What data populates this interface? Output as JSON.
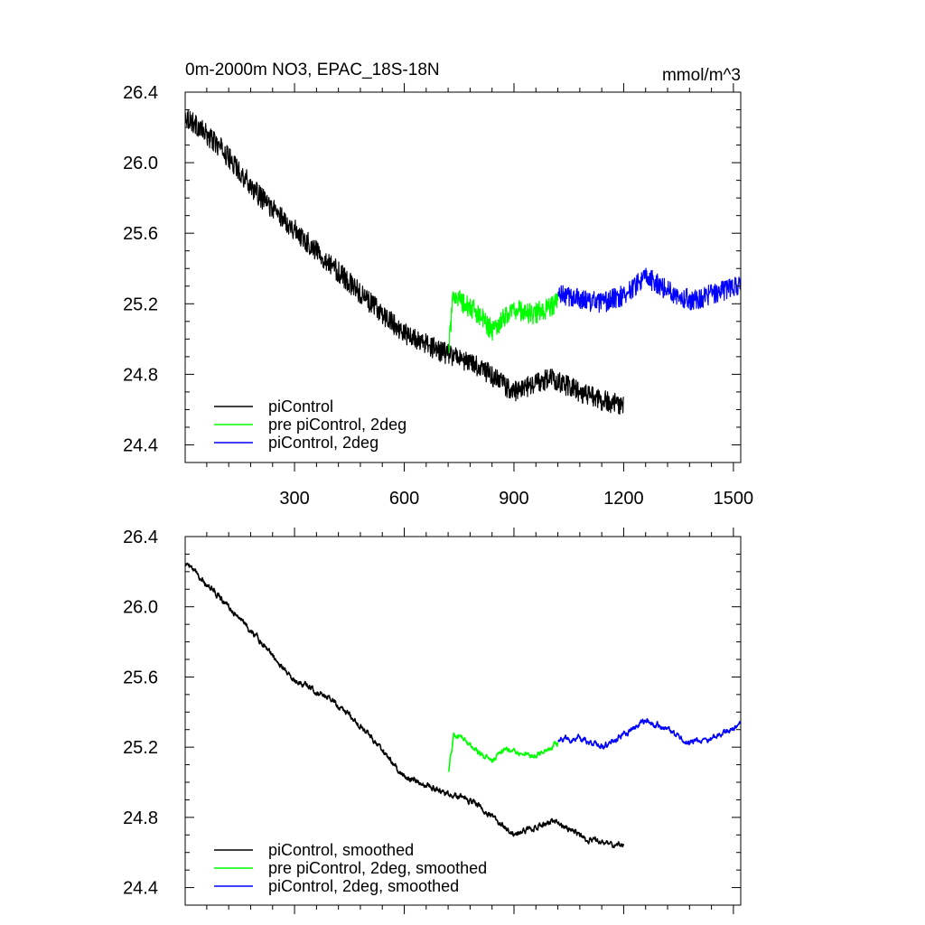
{
  "chart_data": [
    {
      "type": "line",
      "title": "0m-2000m NO3, EPAC_18S-18N",
      "units": "mmol/m^3",
      "xlabel": "",
      "ylabel": "",
      "xlim": [
        1,
        1520
      ],
      "ylim": [
        24.3,
        26.4
      ],
      "x_ticks": [
        300,
        600,
        900,
        1200,
        1500
      ],
      "x_tick_labels": [
        "300",
        "600",
        "900",
        "1200",
        "1500"
      ],
      "y_ticks": [
        24.4,
        24.8,
        25.2,
        25.6,
        26.0,
        26.4
      ],
      "y_tick_labels": [
        "24.4",
        "24.8",
        "25.2",
        "25.6",
        "26.0",
        "26.4"
      ],
      "grid": false,
      "legend_position": "bottom-left",
      "series": [
        {
          "name": "piControl",
          "color": "#000000",
          "noise": 0.06,
          "points": [
            [
              1,
              26.27
            ],
            [
              100,
              26.08
            ],
            [
              200,
              25.82
            ],
            [
              300,
              25.62
            ],
            [
              400,
              25.42
            ],
            [
              500,
              25.22
            ],
            [
              600,
              25.03
            ],
            [
              700,
              24.93
            ],
            [
              800,
              24.85
            ],
            [
              900,
              24.7
            ],
            [
              1000,
              24.78
            ],
            [
              1100,
              24.68
            ],
            [
              1200,
              24.62
            ]
          ]
        },
        {
          "name": "pre piControl, 2deg",
          "color": "#00ff00",
          "noise": 0.06,
          "points": [
            [
              722,
              24.95
            ],
            [
              735,
              25.27
            ],
            [
              760,
              25.2
            ],
            [
              800,
              25.15
            ],
            [
              840,
              25.05
            ],
            [
              870,
              25.12
            ],
            [
              900,
              25.17
            ],
            [
              950,
              25.14
            ],
            [
              1000,
              25.18
            ],
            [
              1020,
              25.22
            ]
          ]
        },
        {
          "name": "piControl, 2deg",
          "color": "#0000ff",
          "noise": 0.06,
          "points": [
            [
              1020,
              25.25
            ],
            [
              1080,
              25.23
            ],
            [
              1140,
              25.2
            ],
            [
              1200,
              25.25
            ],
            [
              1260,
              25.35
            ],
            [
              1320,
              25.28
            ],
            [
              1380,
              25.22
            ],
            [
              1440,
              25.25
            ],
            [
              1500,
              25.3
            ],
            [
              1520,
              25.3
            ]
          ]
        }
      ]
    },
    {
      "type": "line",
      "title": "",
      "xlabel": "",
      "ylabel": "",
      "xlim": [
        1,
        1520
      ],
      "ylim": [
        24.3,
        26.4
      ],
      "x_ticks": [
        300,
        600,
        900,
        1200,
        1500
      ],
      "y_ticks": [
        24.4,
        24.8,
        25.2,
        25.6,
        26.0,
        26.4
      ],
      "y_tick_labels": [
        "24.4",
        "24.8",
        "25.2",
        "25.6",
        "26.0",
        "26.4"
      ],
      "grid": false,
      "legend_position": "bottom-left",
      "series": [
        {
          "name": "piControl, smoothed",
          "color": "#000000",
          "noise": 0.018,
          "points": [
            [
              1,
              26.25
            ],
            [
              100,
              26.05
            ],
            [
              200,
              25.82
            ],
            [
              300,
              25.58
            ],
            [
              400,
              25.48
            ],
            [
              500,
              25.28
            ],
            [
              600,
              25.03
            ],
            [
              700,
              24.95
            ],
            [
              800,
              24.88
            ],
            [
              900,
              24.7
            ],
            [
              1000,
              24.78
            ],
            [
              1100,
              24.68
            ],
            [
              1200,
              24.63
            ]
          ]
        },
        {
          "name": "pre piControl, 2deg, smoothed",
          "color": "#00ff00",
          "noise": 0.018,
          "points": [
            [
              722,
              25.07
            ],
            [
              735,
              25.27
            ],
            [
              760,
              25.25
            ],
            [
              800,
              25.18
            ],
            [
              840,
              25.12
            ],
            [
              870,
              25.18
            ],
            [
              900,
              25.18
            ],
            [
              950,
              25.15
            ],
            [
              1000,
              25.2
            ],
            [
              1020,
              25.22
            ]
          ]
        },
        {
          "name": "piControl, 2deg, smoothed",
          "color": "#0000ff",
          "noise": 0.018,
          "points": [
            [
              1020,
              25.25
            ],
            [
              1080,
              25.25
            ],
            [
              1140,
              25.2
            ],
            [
              1200,
              25.27
            ],
            [
              1260,
              25.35
            ],
            [
              1320,
              25.3
            ],
            [
              1380,
              25.22
            ],
            [
              1440,
              25.25
            ],
            [
              1500,
              25.3
            ],
            [
              1520,
              25.33
            ]
          ]
        }
      ]
    }
  ]
}
